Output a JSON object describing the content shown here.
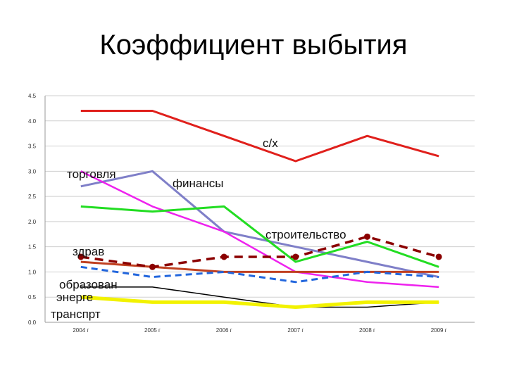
{
  "title": "Коэффициент выбытия",
  "chart_data": {
    "type": "line",
    "x": [
      "2004 г",
      "2005 г",
      "2006 г",
      "2007 г",
      "2008 г",
      "2009 г"
    ],
    "ylim": [
      0,
      4.5
    ],
    "yticks": [
      "0.0",
      "0.5",
      "1.0",
      "1.5",
      "2.0",
      "2.5",
      "3.0",
      "3.5",
      "4.0",
      "4.5"
    ],
    "grid": true,
    "series": [
      {
        "name": "с/х",
        "color": "#e0201c",
        "values": [
          4.2,
          4.2,
          3.7,
          3.2,
          3.7,
          3.3
        ]
      },
      {
        "name": "финансы",
        "color": "#7f7fc8",
        "values": [
          2.7,
          3.0,
          1.8,
          1.5,
          1.2,
          0.9
        ]
      },
      {
        "name": "торговля",
        "color": "#ee22ee",
        "values": [
          3.0,
          2.3,
          1.8,
          1.0,
          0.8,
          0.7
        ]
      },
      {
        "name": "строительство",
        "color": "#22dd22",
        "values": [
          2.3,
          2.2,
          2.3,
          1.2,
          1.6,
          1.1
        ]
      },
      {
        "name": "здрав",
        "color": "#c04020",
        "values": [
          1.2,
          1.1,
          1.0,
          1.0,
          1.0,
          1.0
        ]
      },
      {
        "name": "",
        "color": "#8b0000",
        "values": [
          1.3,
          1.1,
          1.3,
          1.3,
          1.7,
          1.3
        ]
      },
      {
        "name": "образован",
        "color": "#2266dd",
        "values": [
          1.1,
          0.9,
          1.0,
          0.8,
          1.0,
          0.9
        ]
      },
      {
        "name": "энерге",
        "color": "#000000",
        "values": [
          0.7,
          0.7,
          0.5,
          0.3,
          0.3,
          0.4
        ]
      },
      {
        "name": "транспрт",
        "color": "#f2f200",
        "values": [
          0.5,
          0.4,
          0.4,
          0.3,
          0.4,
          0.4
        ]
      }
    ],
    "annotations": [
      "с/х",
      "торговля",
      "финансы",
      "строительство",
      "здрав",
      "образован",
      "энерге",
      "транспрт"
    ]
  }
}
